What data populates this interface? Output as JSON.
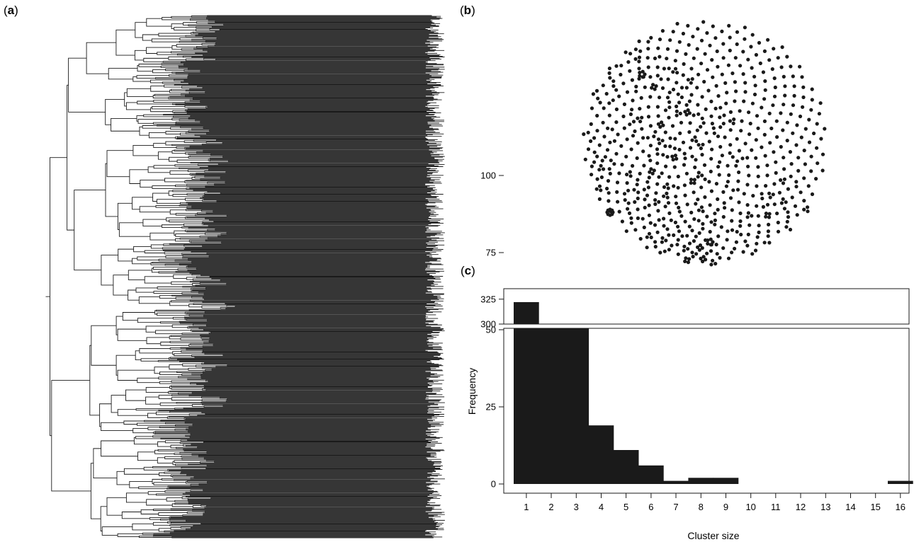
{
  "colors": {
    "ink": "#1a1a1a",
    "background": "#ffffff"
  },
  "panels": {
    "a": {
      "open": "(",
      "letter": "a",
      "close": ")"
    },
    "b": {
      "open": "(",
      "letter": "b",
      "close": ")"
    },
    "c": {
      "open": "(",
      "letter": "c",
      "close": ")"
    }
  },
  "chart_data": [
    {
      "panel": "a",
      "type": "dendrogram",
      "orientation": "root-left, leaves-right"
    },
    {
      "panel": "b",
      "type": "scatter",
      "description_shape": "circular network layout of clustered nodes"
    },
    {
      "panel": "c",
      "type": "bar",
      "xlabel": "Cluster size",
      "ylabel": "Frequency",
      "categories": [
        "1",
        "2",
        "3",
        "4",
        "5",
        "6",
        "7",
        "8",
        "9",
        "10",
        "11",
        "12",
        "13",
        "14",
        "15",
        "16"
      ],
      "values": [
        322,
        127,
        57,
        19,
        11,
        6,
        1,
        2,
        2,
        0,
        0,
        0,
        0,
        0,
        0,
        1
      ],
      "y_axis_break": true,
      "lower_ylim": [
        0,
        130
      ],
      "lower_yticks": [
        "0",
        "25",
        "50",
        "75",
        "100"
      ],
      "upper_ylim": [
        300,
        330
      ],
      "upper_yticks": [
        "300",
        "325"
      ],
      "grid": false
    }
  ]
}
